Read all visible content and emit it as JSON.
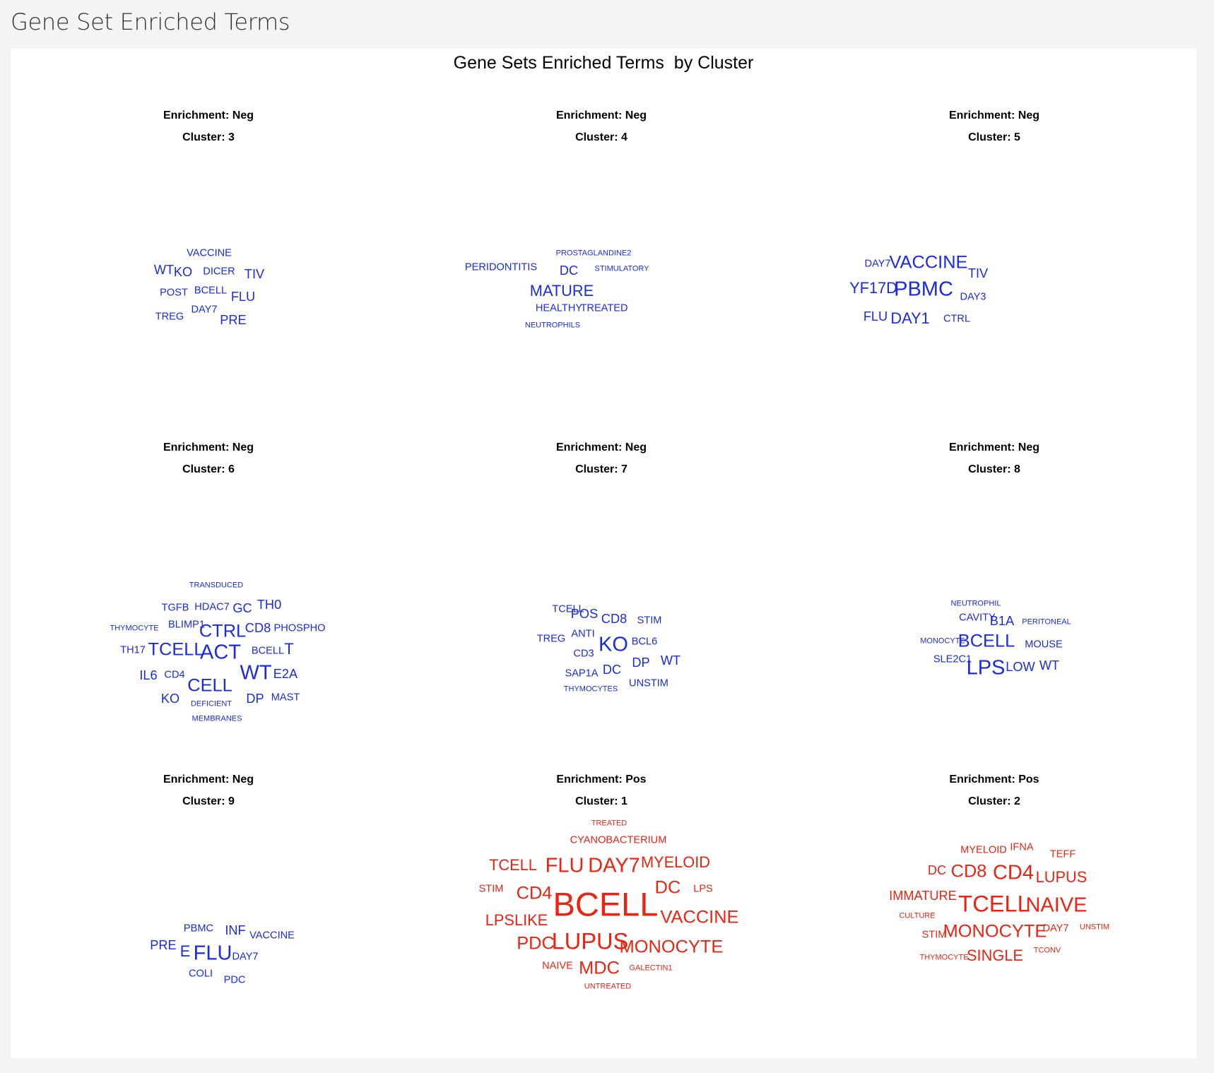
{
  "header": {
    "title": "Gene Set Enriched Terms"
  },
  "chart_data": {
    "type": "wordcloud",
    "title": "Gene Sets Enriched Terms  by Cluster",
    "colors": {
      "Neg": "#1a2ae6",
      "Pos": "#ee2211"
    },
    "enrichment_prefix": "Enrichment: ",
    "cluster_prefix": "Cluster: ",
    "panels": [
      {
        "enrichment": "Neg",
        "cluster": "3",
        "words": [
          {
            "text": "VACCINE",
            "weight": 1
          },
          {
            "text": "WT",
            "weight": 2
          },
          {
            "text": "KO",
            "weight": 2
          },
          {
            "text": "DICER",
            "weight": 1
          },
          {
            "text": "TIV",
            "weight": 2
          },
          {
            "text": "POST",
            "weight": 1
          },
          {
            "text": "BCELL",
            "weight": 1
          },
          {
            "text": "FLU",
            "weight": 2
          },
          {
            "text": "DAY7",
            "weight": 1
          },
          {
            "text": "TREG",
            "weight": 1
          },
          {
            "text": "PRE",
            "weight": 2
          }
        ]
      },
      {
        "enrichment": "Neg",
        "cluster": "4",
        "words": [
          {
            "text": "PROSTAGLANDINE2",
            "weight": 0
          },
          {
            "text": "PERIDONTITIS",
            "weight": 1
          },
          {
            "text": "DC",
            "weight": 2
          },
          {
            "text": "STIMULATORY",
            "weight": 0
          },
          {
            "text": "MATURE",
            "weight": 3
          },
          {
            "text": "HEALTHY",
            "weight": 1
          },
          {
            "text": "TREATED",
            "weight": 1
          },
          {
            "text": "NEUTROPHILS",
            "weight": 0
          }
        ]
      },
      {
        "enrichment": "Neg",
        "cluster": "5",
        "words": [
          {
            "text": "DAY7",
            "weight": 1
          },
          {
            "text": "VACCINE",
            "weight": 4
          },
          {
            "text": "TIV",
            "weight": 2
          },
          {
            "text": "YF17D",
            "weight": 3
          },
          {
            "text": "PBMC",
            "weight": 5
          },
          {
            "text": "DAY3",
            "weight": 1
          },
          {
            "text": "FLU",
            "weight": 2
          },
          {
            "text": "DAY1",
            "weight": 3
          },
          {
            "text": "CTRL",
            "weight": 1
          }
        ]
      },
      {
        "enrichment": "Neg",
        "cluster": "6",
        "words": [
          {
            "text": "TRANSDUCED",
            "weight": 0
          },
          {
            "text": "TGFB",
            "weight": 1
          },
          {
            "text": "HDAC7",
            "weight": 1
          },
          {
            "text": "GC",
            "weight": 2
          },
          {
            "text": "TH0",
            "weight": 2
          },
          {
            "text": "THYMOCYTE",
            "weight": 0
          },
          {
            "text": "BLIMP1",
            "weight": 1
          },
          {
            "text": "CTRL",
            "weight": 4
          },
          {
            "text": "CD8",
            "weight": 2
          },
          {
            "text": "PHOSPHO",
            "weight": 1
          },
          {
            "text": "TH17",
            "weight": 1
          },
          {
            "text": "TCELL",
            "weight": 4
          },
          {
            "text": "ACT",
            "weight": 5
          },
          {
            "text": "BCELL",
            "weight": 1
          },
          {
            "text": "T",
            "weight": 3
          },
          {
            "text": "IL6",
            "weight": 2
          },
          {
            "text": "CD4",
            "weight": 1
          },
          {
            "text": "CELL",
            "weight": 4
          },
          {
            "text": "WT",
            "weight": 5
          },
          {
            "text": "E2A",
            "weight": 2
          },
          {
            "text": "KO",
            "weight": 2
          },
          {
            "text": "DEFICIENT",
            "weight": 0
          },
          {
            "text": "DP",
            "weight": 2
          },
          {
            "text": "MAST",
            "weight": 1
          },
          {
            "text": "MEMBRANES",
            "weight": 0
          }
        ]
      },
      {
        "enrichment": "Neg",
        "cluster": "7",
        "words": [
          {
            "text": "TCELL",
            "weight": 1
          },
          {
            "text": "POS",
            "weight": 2
          },
          {
            "text": "CD8",
            "weight": 2
          },
          {
            "text": "STIM",
            "weight": 1
          },
          {
            "text": "TREG",
            "weight": 1
          },
          {
            "text": "ANTI",
            "weight": 1
          },
          {
            "text": "KO",
            "weight": 5
          },
          {
            "text": "BCL6",
            "weight": 1
          },
          {
            "text": "CD3",
            "weight": 1
          },
          {
            "text": "DP",
            "weight": 2
          },
          {
            "text": "WT",
            "weight": 2
          },
          {
            "text": "SAP1A",
            "weight": 1
          },
          {
            "text": "DC",
            "weight": 2
          },
          {
            "text": "THYMOCYTES",
            "weight": 0
          },
          {
            "text": "UNSTIM",
            "weight": 1
          }
        ]
      },
      {
        "enrichment": "Neg",
        "cluster": "8",
        "words": [
          {
            "text": "NEUTROPHIL",
            "weight": 0
          },
          {
            "text": "CAVITY",
            "weight": 1
          },
          {
            "text": "B1A",
            "weight": 2
          },
          {
            "text": "PERITONEAL",
            "weight": 0
          },
          {
            "text": "MONOCYTE",
            "weight": 0
          },
          {
            "text": "BCELL",
            "weight": 4
          },
          {
            "text": "MOUSE",
            "weight": 1
          },
          {
            "text": "SLE2C1",
            "weight": 1
          },
          {
            "text": "LPS",
            "weight": 5
          },
          {
            "text": "LOW",
            "weight": 2
          },
          {
            "text": "WT",
            "weight": 2
          }
        ]
      },
      {
        "enrichment": "Neg",
        "cluster": "9",
        "words": [
          {
            "text": "PBMC",
            "weight": 1
          },
          {
            "text": "INF",
            "weight": 2
          },
          {
            "text": "VACCINE",
            "weight": 1
          },
          {
            "text": "PRE",
            "weight": 2
          },
          {
            "text": "E",
            "weight": 3
          },
          {
            "text": "FLU",
            "weight": 5
          },
          {
            "text": "DAY7",
            "weight": 1
          },
          {
            "text": "COLI",
            "weight": 1
          },
          {
            "text": "PDC",
            "weight": 1
          }
        ]
      },
      {
        "enrichment": "Pos",
        "cluster": "1",
        "words": [
          {
            "text": "TREATED",
            "weight": 0
          },
          {
            "text": "CYANOBACTERIUM",
            "weight": 1
          },
          {
            "text": "TCELL",
            "weight": 3
          },
          {
            "text": "FLU",
            "weight": 5
          },
          {
            "text": "DAY7",
            "weight": 5
          },
          {
            "text": "MYELOID",
            "weight": 3
          },
          {
            "text": "STIM",
            "weight": 1
          },
          {
            "text": "CD4",
            "weight": 4
          },
          {
            "text": "BCELL",
            "weight": 10
          },
          {
            "text": "DC",
            "weight": 4
          },
          {
            "text": "LPS",
            "weight": 1
          },
          {
            "text": "LPSLIKE",
            "weight": 3
          },
          {
            "text": "VACCINE",
            "weight": 4
          },
          {
            "text": "PDC",
            "weight": 4
          },
          {
            "text": "LUPUS",
            "weight": 6
          },
          {
            "text": "MONOCYTE",
            "weight": 4
          },
          {
            "text": "NAIVE",
            "weight": 1
          },
          {
            "text": "MDC",
            "weight": 4
          },
          {
            "text": "GALECTIN1",
            "weight": 0
          },
          {
            "text": "UNTREATED",
            "weight": 0
          }
        ]
      },
      {
        "enrichment": "Pos",
        "cluster": "2",
        "words": [
          {
            "text": "MYELOID",
            "weight": 1
          },
          {
            "text": "IFNA",
            "weight": 1
          },
          {
            "text": "TEFF",
            "weight": 1
          },
          {
            "text": "DC",
            "weight": 2
          },
          {
            "text": "CD8",
            "weight": 4
          },
          {
            "text": "CD4",
            "weight": 5
          },
          {
            "text": "LUPUS",
            "weight": 3
          },
          {
            "text": "IMMATURE",
            "weight": 2
          },
          {
            "text": "TCELL",
            "weight": 6
          },
          {
            "text": "NAIVE",
            "weight": 5
          },
          {
            "text": "CULTURE",
            "weight": 0
          },
          {
            "text": "STIM",
            "weight": 1
          },
          {
            "text": "MONOCYTE",
            "weight": 4
          },
          {
            "text": "DAY7",
            "weight": 1
          },
          {
            "text": "UNSTIM",
            "weight": 0
          },
          {
            "text": "THYMOCYTE",
            "weight": 0
          },
          {
            "text": "SINGLE",
            "weight": 3
          },
          {
            "text": "TCONV",
            "weight": 0
          }
        ]
      }
    ]
  }
}
